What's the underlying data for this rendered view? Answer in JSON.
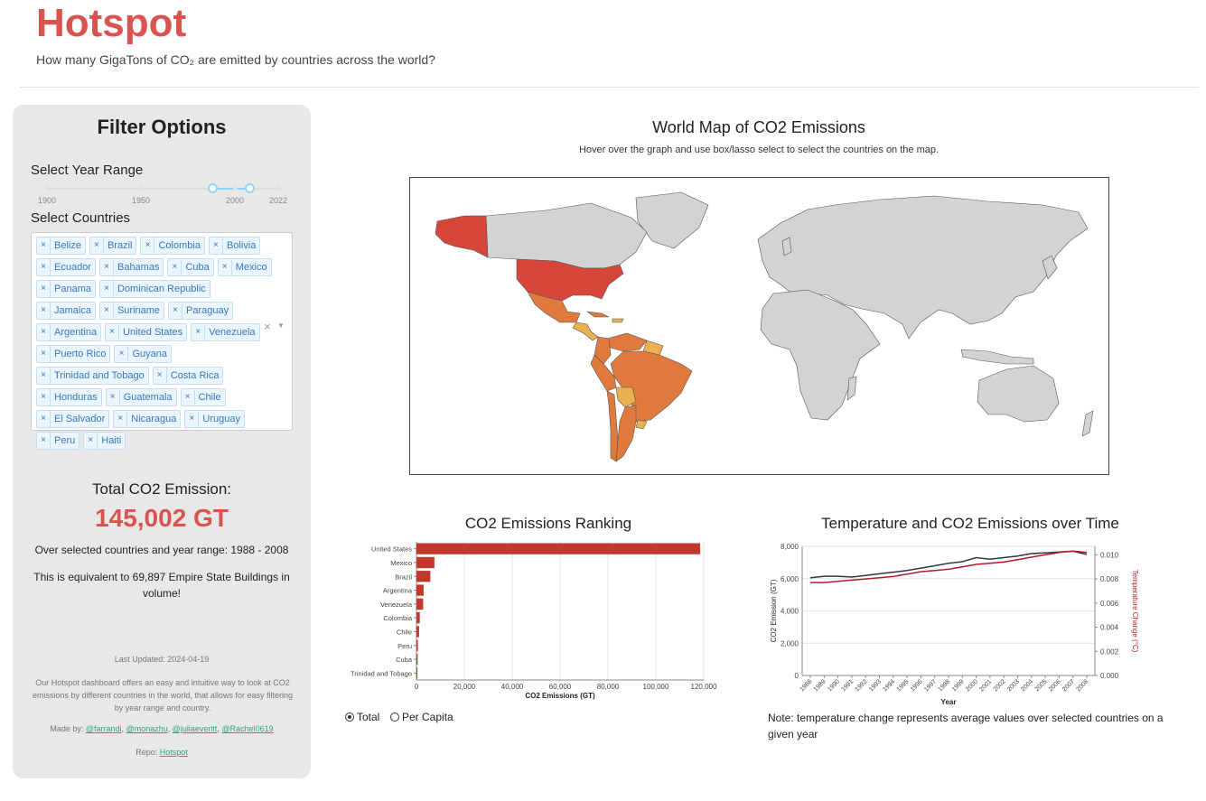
{
  "header": {
    "title": "Hotspot",
    "subtitle": "How many GigaTons of CO₂ are emitted by countries across the world?"
  },
  "sidebar": {
    "title": "Filter Options",
    "year_range_label": "Select Year Range",
    "year_marks": [
      "1900",
      "1950",
      "2000",
      "2022"
    ],
    "year_range_value": [
      1988,
      2008
    ],
    "countries_label": "Select Countries",
    "countries": [
      "Belize",
      "Brazil",
      "Colombia",
      "Bolivia",
      "Ecuador",
      "Bahamas",
      "Cuba",
      "Mexico",
      "Panama",
      "Dominican Republic",
      "Jamaica",
      "Suriname",
      "Paraguay",
      "Argentina",
      "United States",
      "Venezuela",
      "Puerto Rico",
      "Guyana",
      "Trinidad and Tobago",
      "Costa Rica",
      "Honduras",
      "Guatemala",
      "Chile",
      "El Salvador",
      "Nicaragua",
      "Uruguay",
      "Peru",
      "Haiti"
    ],
    "remove_glyph": "×",
    "total_label": "Total CO2 Emission:",
    "total_value": "145,002 GT",
    "total_note": "Over selected countries and year range: 1988 - 2008",
    "equivalence": "This is equivalent to 69,897 Empire State Buildings in volume!",
    "last_updated": "Last Updated: 2024-04-19",
    "about": "Our Hotspot dashboard offers an easy and intuitive way to look at CO2 emissions by different countries in the world, that allows for easy filtering by year range and country.",
    "made_by_prefix": "Made by: ",
    "authors": [
      "@farrandi",
      "@monazhu",
      "@juliaeveritt",
      "@Rachel0619"
    ],
    "repo_prefix": "Repo: ",
    "repo_link": "Hotspot"
  },
  "map": {
    "title": "World Map of CO2 Emissions",
    "subtitle": "Hover over the graph and use box/lasso select to select the countries on the map.",
    "colors": {
      "land": "#d3d3d3",
      "high": "#d7463a",
      "mid": "#e07a3c",
      "low": "#ebb04f"
    }
  },
  "ranking": {
    "title": "CO2 Emissions Ranking",
    "radio_options": [
      "Total",
      "Per Capita"
    ],
    "radio_selected": "Total"
  },
  "temperature": {
    "title": "Temperature and CO2 Emissions over Time",
    "note": "Note: temperature change represents average values over selected countries on a given year"
  },
  "chart_data": [
    {
      "type": "bar",
      "orientation": "horizontal",
      "categories": [
        "United States",
        "Mexico",
        "Brazil",
        "Argentina",
        "Venezuela",
        "Colombia",
        "Chile",
        "Peru",
        "Cuba",
        "Trinidad and Tobago"
      ],
      "values": [
        118500,
        7500,
        5800,
        3000,
        2800,
        1400,
        1100,
        600,
        500,
        400
      ],
      "xlabel": "CO2 Emissions (GT)",
      "ylabel": "",
      "xlim": [
        0,
        120000
      ],
      "xticks": [
        "0",
        "20,000",
        "40,000",
        "60,000",
        "80,000",
        "100,000",
        "120,000"
      ],
      "color": "#c0392b",
      "grid": true
    },
    {
      "type": "line",
      "x": [
        1988,
        1989,
        1990,
        1991,
        1992,
        1993,
        1994,
        1995,
        1996,
        1997,
        1998,
        1999,
        2000,
        2001,
        2002,
        2003,
        2004,
        2005,
        2006,
        2007,
        2008
      ],
      "series": [
        {
          "name": "CO2 Emission (GT)",
          "axis": "left",
          "color": "#333745",
          "values": [
            6050,
            6150,
            6150,
            6100,
            6200,
            6300,
            6400,
            6500,
            6650,
            6800,
            6950,
            7050,
            7300,
            7200,
            7300,
            7400,
            7550,
            7600,
            7650,
            7700,
            7500
          ]
        },
        {
          "name": "Temperature Change (°C)",
          "axis": "right",
          "color": "#b01c2a",
          "values": [
            0.0077,
            0.0077,
            0.0078,
            0.0079,
            0.008,
            0.0081,
            0.0082,
            0.0084,
            0.0086,
            0.0087,
            0.0088,
            0.009,
            0.0092,
            0.0093,
            0.0094,
            0.0096,
            0.0098,
            0.01,
            0.0102,
            0.0103,
            0.0102
          ]
        }
      ],
      "xlabel": "Year",
      "ylabel": "CO2 Emission (GT)",
      "y2label": "Temperature Change (°C)",
      "ylim": [
        0,
        8000
      ],
      "y2lim": [
        0,
        0.0107
      ],
      "yticks": [
        "0",
        "2,000",
        "4,000",
        "6,000",
        "8,000"
      ],
      "y2ticks": [
        "0.000",
        "0.002",
        "0.004",
        "0.006",
        "0.008",
        "0.010"
      ],
      "grid": true
    }
  ]
}
